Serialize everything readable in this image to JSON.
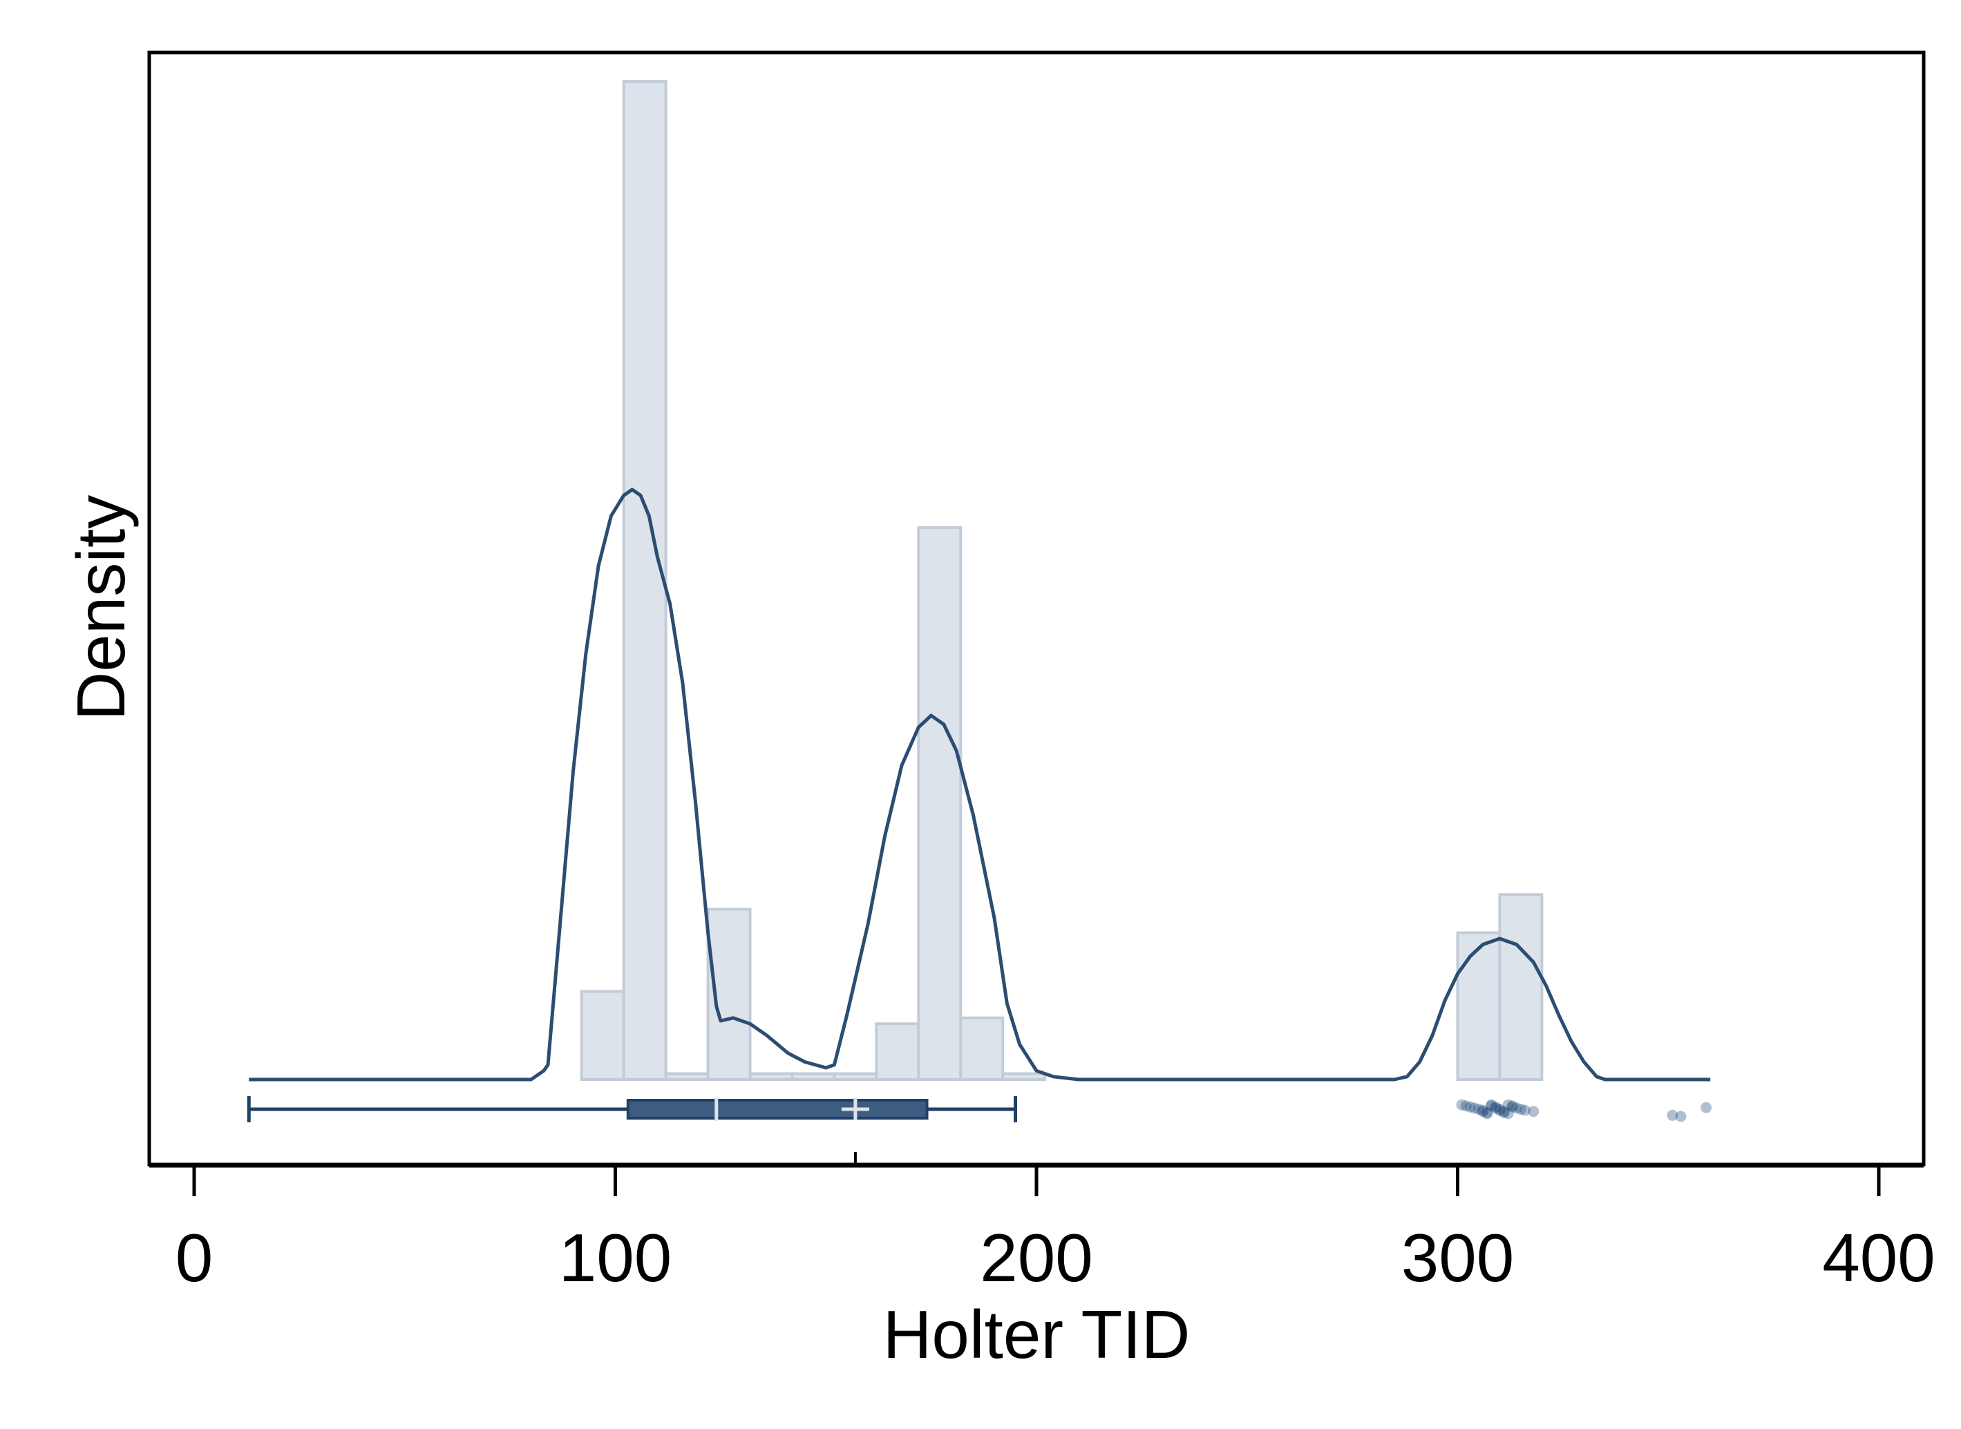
{
  "chart_data": {
    "type": "histogram-density-boxplot",
    "title": "",
    "xlabel": "Holter TID",
    "ylabel": "Density",
    "xlim": [
      -10,
      410
    ],
    "xticks": [
      0,
      100,
      200,
      300,
      400
    ],
    "x_tick_labels": [
      "0",
      "100",
      "200",
      "300",
      "400"
    ],
    "y_ticks_shown": false,
    "grid": false,
    "histogram": {
      "bin_width": 10,
      "bins": [
        {
          "start": 92,
          "end": 102,
          "height": 0.3
        },
        {
          "start": 102,
          "end": 112,
          "height": 3.4
        },
        {
          "start": 112,
          "end": 122,
          "height": 0.02
        },
        {
          "start": 122,
          "end": 132,
          "height": 0.58
        },
        {
          "start": 132,
          "end": 142,
          "height": 0.02
        },
        {
          "start": 142,
          "end": 152,
          "height": 0.02
        },
        {
          "start": 152,
          "end": 162,
          "height": 0.02
        },
        {
          "start": 162,
          "end": 172,
          "height": 0.19
        },
        {
          "start": 172,
          "end": 182,
          "height": 1.88
        },
        {
          "start": 182,
          "end": 192,
          "height": 0.21
        },
        {
          "start": 192,
          "end": 202,
          "height": 0.02
        },
        {
          "start": 300,
          "end": 310,
          "height": 0.5
        },
        {
          "start": 310,
          "end": 320,
          "height": 0.63
        }
      ]
    },
    "density_curve": [
      [
        13,
        0.0
      ],
      [
        80,
        0.0
      ],
      [
        83,
        0.03
      ],
      [
        84,
        0.05
      ],
      [
        87,
        0.55
      ],
      [
        90,
        1.05
      ],
      [
        93,
        1.45
      ],
      [
        96,
        1.75
      ],
      [
        99,
        1.92
      ],
      [
        102,
        1.99
      ],
      [
        104,
        2.01
      ],
      [
        106,
        1.99
      ],
      [
        108,
        1.92
      ],
      [
        110,
        1.78
      ],
      [
        113,
        1.62
      ],
      [
        116,
        1.35
      ],
      [
        119,
        0.95
      ],
      [
        122,
        0.5
      ],
      [
        124,
        0.25
      ],
      [
        125,
        0.2
      ],
      [
        128,
        0.21
      ],
      [
        132,
        0.19
      ],
      [
        136,
        0.15
      ],
      [
        141,
        0.09
      ],
      [
        145,
        0.06
      ],
      [
        150,
        0.04
      ],
      [
        152,
        0.05
      ],
      [
        155,
        0.22
      ],
      [
        160,
        0.53
      ],
      [
        164,
        0.83
      ],
      [
        168,
        1.07
      ],
      [
        172,
        1.2
      ],
      [
        175,
        1.24
      ],
      [
        178,
        1.21
      ],
      [
        181,
        1.12
      ],
      [
        185,
        0.9
      ],
      [
        190,
        0.55
      ],
      [
        193,
        0.26
      ],
      [
        196,
        0.12
      ],
      [
        200,
        0.03
      ],
      [
        204,
        0.01
      ],
      [
        210,
        0.0
      ],
      [
        240,
        0.0
      ],
      [
        270,
        0.0
      ],
      [
        285,
        0.0
      ],
      [
        288,
        0.01
      ],
      [
        291,
        0.06
      ],
      [
        294,
        0.15
      ],
      [
        297,
        0.27
      ],
      [
        300,
        0.36
      ],
      [
        303,
        0.42
      ],
      [
        306,
        0.46
      ],
      [
        310,
        0.48
      ],
      [
        314,
        0.46
      ],
      [
        318,
        0.4
      ],
      [
        321,
        0.32
      ],
      [
        324,
        0.22
      ],
      [
        327,
        0.13
      ],
      [
        330,
        0.06
      ],
      [
        333,
        0.01
      ],
      [
        335,
        0.0
      ],
      [
        360,
        0.0
      ]
    ],
    "boxplot": {
      "whisker_low": 13,
      "q1": 103,
      "median": 124,
      "mean": 157,
      "q3": 174,
      "whisker_high": 195
    },
    "outliers": [
      301,
      302,
      303,
      304,
      305,
      306,
      306,
      307,
      307,
      308,
      308,
      309,
      309,
      310,
      310,
      311,
      311,
      312,
      312,
      313,
      313,
      314,
      315,
      316,
      318,
      351,
      353,
      359
    ],
    "colors": {
      "bar_fill": "#dde3ea",
      "bar_stroke": "#c2ccd8",
      "curve": "#2b4d72",
      "box_fill": "#3d5c80",
      "box_stroke": "#1f4068",
      "marker_light": "#dde3ea",
      "outlier": "#1f4a78",
      "axis": "#000000"
    }
  }
}
